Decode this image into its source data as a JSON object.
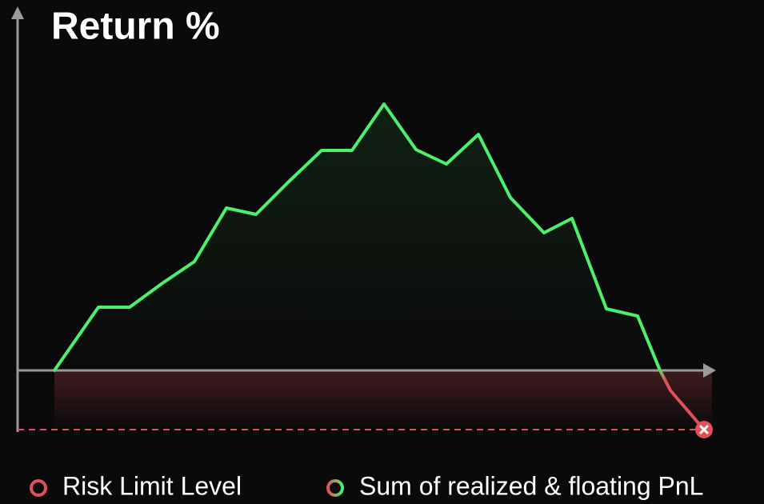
{
  "chart_data": {
    "type": "line",
    "title": "Return %",
    "x": [
      0,
      5.5,
      9.4,
      13.5,
      17.5,
      21.5,
      25.2,
      29.2,
      33.4,
      37.2,
      41.2,
      45.2,
      49,
      53,
      57,
      61.2,
      64.7,
      69,
      72.9,
      75.7,
      77,
      81.2
    ],
    "series": [
      {
        "name": "Sum of realized & floating PnL",
        "color": "#4cf06a",
        "negative_color": "#e0505a",
        "values": [
          0,
          7.9,
          7.9,
          10.9,
          13.6,
          20.3,
          19.5,
          23.5,
          27.5,
          27.5,
          33.3,
          27.6,
          25.8,
          29.5,
          21.6,
          17.2,
          19,
          7.7,
          6.8,
          0,
          -2.5,
          -7.4
        ]
      }
    ],
    "risk_limit": {
      "name": "Risk Limit Level",
      "value": -7.4,
      "color": "#e0505a"
    },
    "xlim": [
      -4.6,
      82.7
    ],
    "ylim": [
      -7.7,
      45.3
    ],
    "grid": false
  }
}
